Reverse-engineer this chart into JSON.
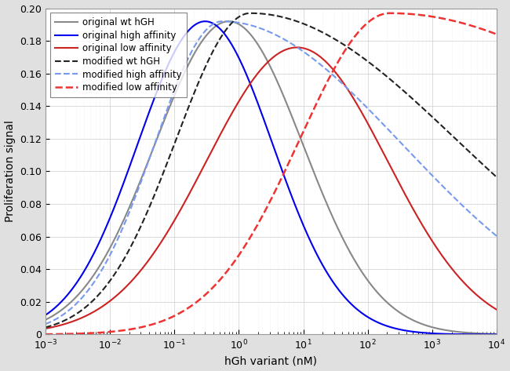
{
  "xlabel": "hGh variant (nM)",
  "ylabel": "Proliferation signal",
  "xlim_log": [
    -3,
    4
  ],
  "ylim": [
    0,
    0.2
  ],
  "yticks": [
    0,
    0.02,
    0.04,
    0.06,
    0.08,
    0.1,
    0.12,
    0.14,
    0.16,
    0.18,
    0.2
  ],
  "curves": [
    {
      "label": "original wt hGH",
      "color": "#888888",
      "linestyle": "solid",
      "linewidth": 1.5,
      "kd1": 0.003,
      "kd2": 70.0,
      "model": "original",
      "scale": 1.0
    },
    {
      "label": "original high affinity",
      "color": "#0000EE",
      "linestyle": "solid",
      "linewidth": 1.5,
      "kd1": 0.0003,
      "kd2": 70.0,
      "model": "original",
      "scale": 1.0
    },
    {
      "label": "original low affinity",
      "color": "#CC2222",
      "linestyle": "solid",
      "linewidth": 1.5,
      "kd1": 0.3,
      "kd2": 70.0,
      "model": "original",
      "scale": 0.92
    },
    {
      "label": "modified wt hGH",
      "color": "#222222",
      "linestyle": "dashed",
      "linewidth": 1.5,
      "kd1": 0.003,
      "kd2": 70.0,
      "model": "modified",
      "scale": 1.0
    },
    {
      "label": "modified high affinity",
      "color": "#7799FF",
      "linestyle": "dashed",
      "linewidth": 1.5,
      "kd1": 0.0003,
      "kd2": 70.0,
      "model": "modified",
      "scale": 1.0
    },
    {
      "label": "modified low affinity",
      "color": "#FF3333",
      "linestyle": "dashed",
      "linewidth": 1.8,
      "kd1": 0.3,
      "kd2": 70.0,
      "model": "modified",
      "scale": 1.0
    }
  ],
  "background_color": "#E0E0E0",
  "plot_bg_color": "#FFFFFF"
}
